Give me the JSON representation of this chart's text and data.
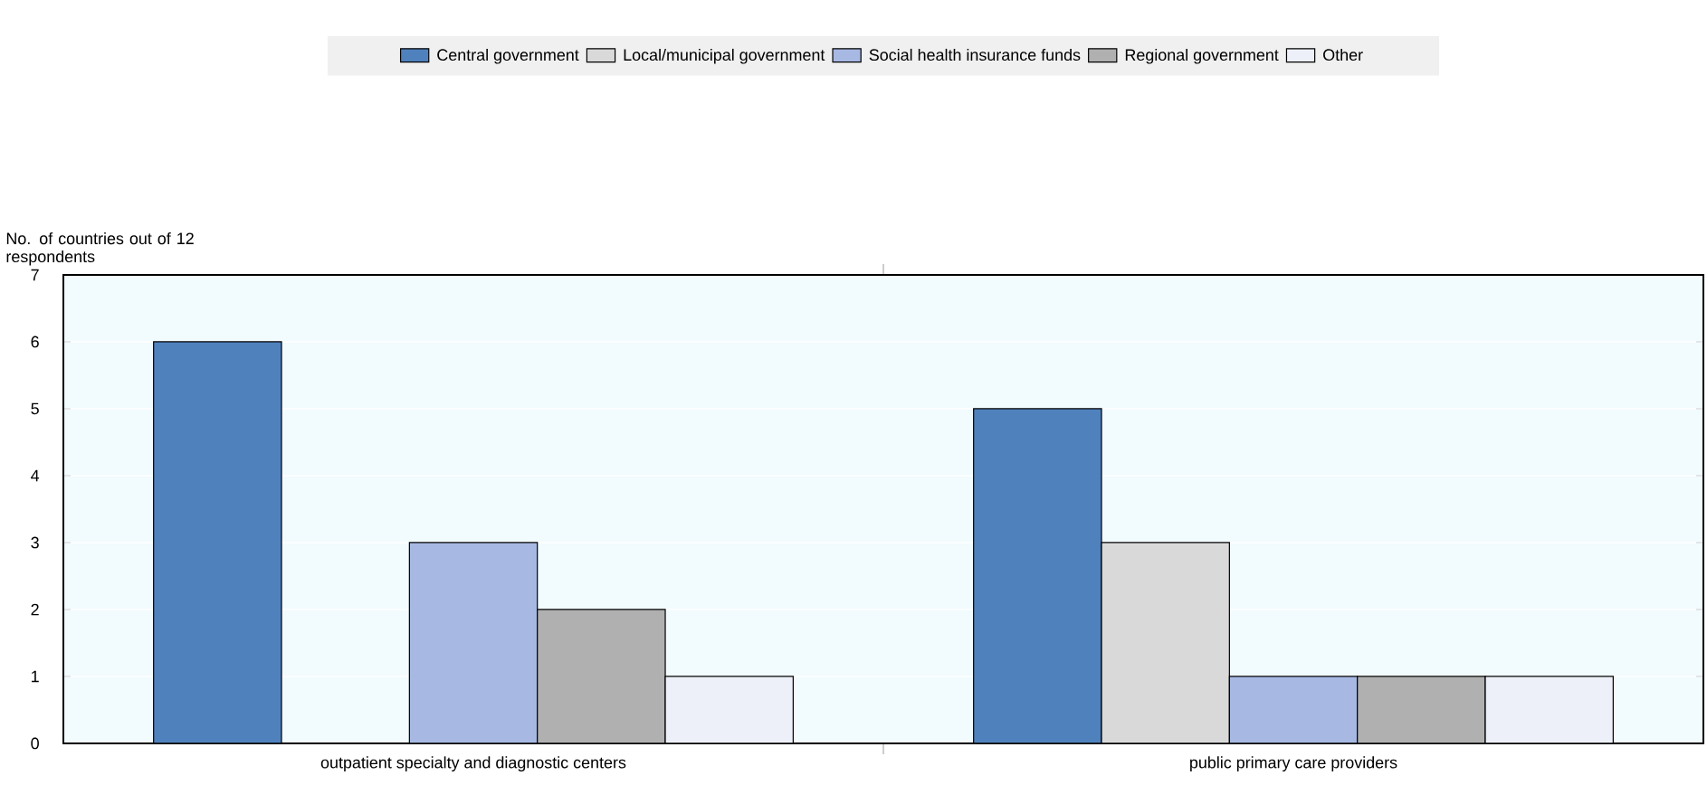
{
  "chart_data": {
    "type": "bar",
    "ylabel": "No. of countries out of 12 respondents",
    "categories": [
      "outpatient specialty and diagnostic centers",
      "public primary care providers"
    ],
    "series": [
      {
        "name": "Central government",
        "color": "#4f81bd",
        "values": [
          6,
          5
        ]
      },
      {
        "name": "Local/municipal government",
        "color": "#d9d9d9",
        "values": [
          null,
          3
        ]
      },
      {
        "name": "Social health insurance funds",
        "color": "#a7b9e3",
        "values": [
          3,
          1
        ]
      },
      {
        "name": "Regional government",
        "color": "#b0b0b0",
        "values": [
          2,
          1
        ]
      },
      {
        "name": "Other",
        "color": "#edf0f8",
        "values": [
          1,
          1
        ]
      }
    ],
    "ylim": [
      0,
      7
    ],
    "yticks": [
      0,
      1,
      2,
      3,
      4,
      5,
      6,
      7
    ],
    "grid": "y",
    "legend": "top"
  }
}
